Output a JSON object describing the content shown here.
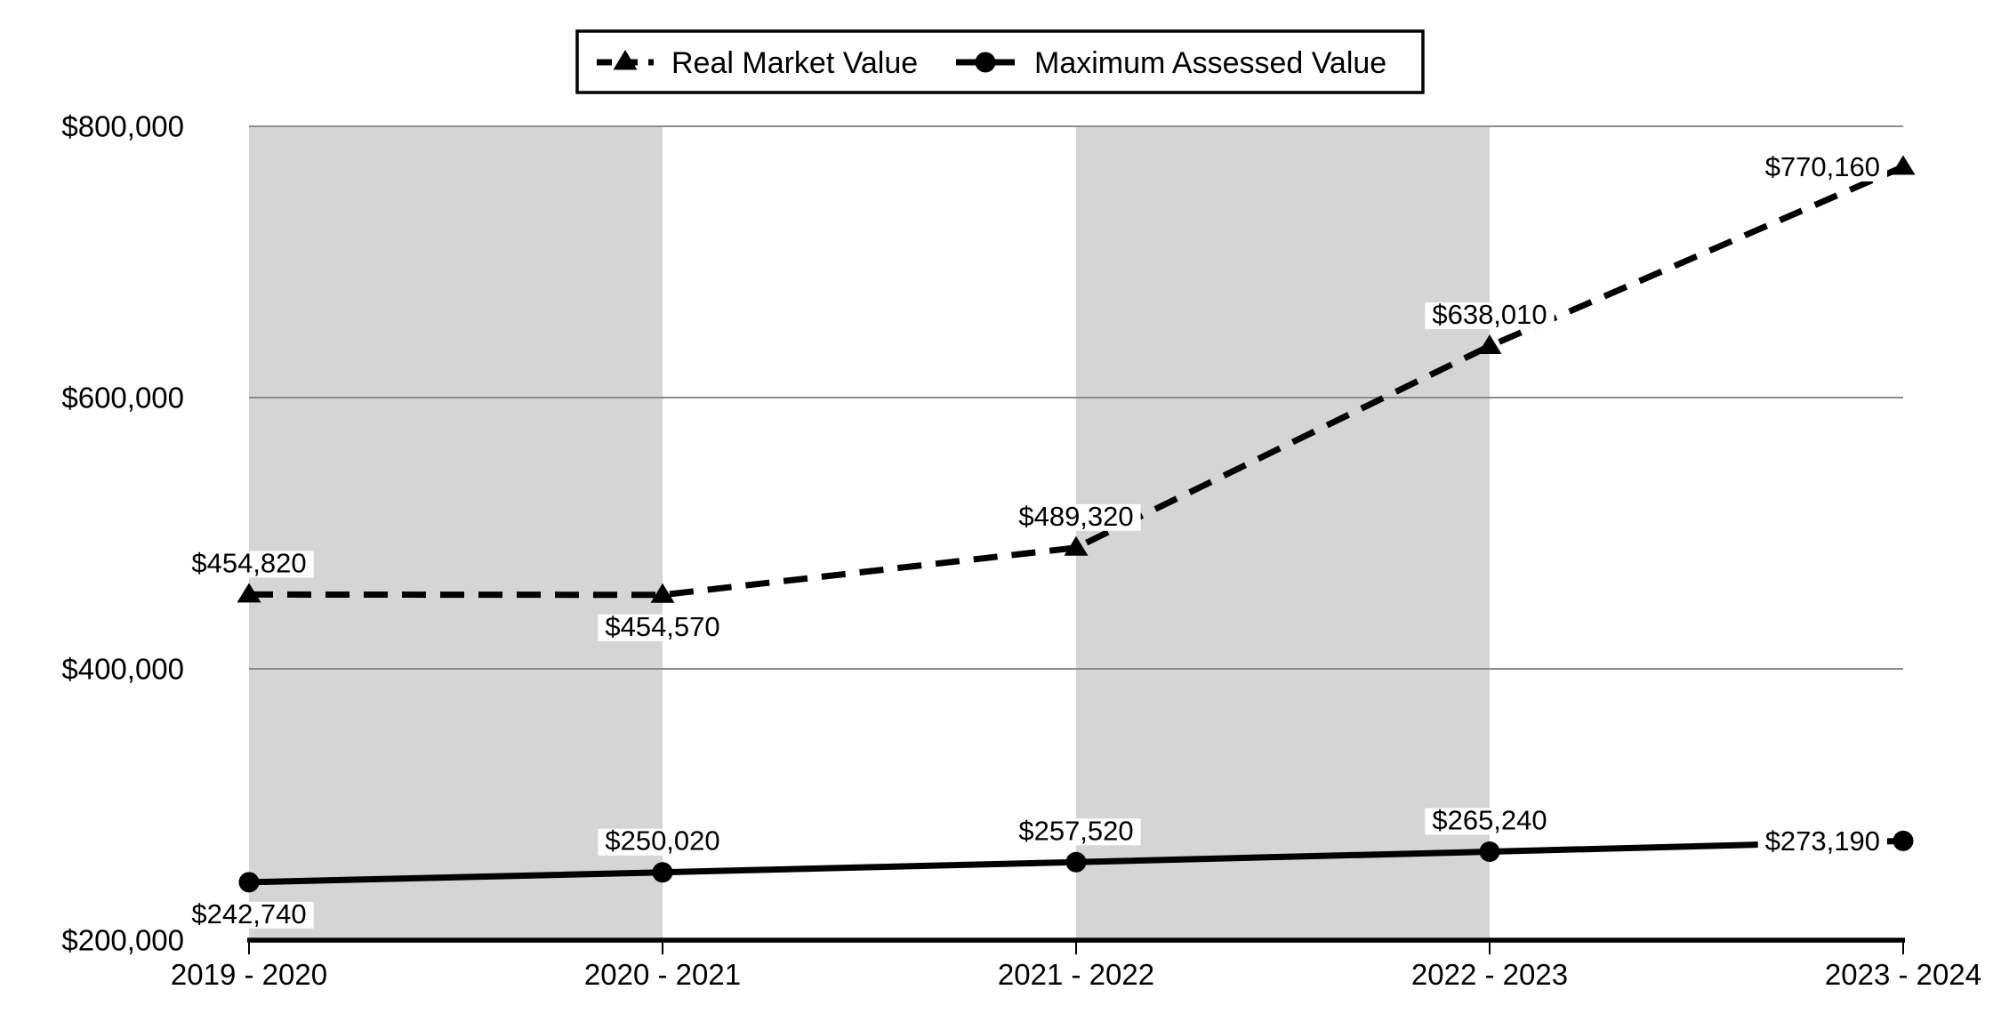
{
  "legend": {
    "items": [
      {
        "label": "Real Market Value",
        "marker": "dashed-line-with-triangle"
      },
      {
        "label": "Maximum Assessed Value",
        "marker": "solid-line-with-circle"
      }
    ]
  },
  "chart_data": {
    "type": "line",
    "title": "",
    "categories": [
      "2019 - 2020",
      "2020 - 2021",
      "2021 - 2022",
      "2022 - 2023",
      "2023 - 2024"
    ],
    "series": [
      {
        "name": "Real Market Value",
        "line_style": "dashed",
        "marker": "triangle",
        "color": "#000000",
        "values": [
          454820,
          454570,
          489320,
          638010,
          770160
        ],
        "data_labels": [
          "$454,820",
          "$454,570",
          "$489,320",
          "$638,010",
          "$770,160"
        ],
        "data_label_positions": [
          "above",
          "below",
          "above",
          "above",
          "left"
        ]
      },
      {
        "name": "Maximum Assessed Value",
        "line_style": "solid",
        "marker": "circle",
        "color": "#000000",
        "values": [
          242740,
          250020,
          257520,
          265240,
          273190
        ],
        "data_labels": [
          "$242,740",
          "$250,020",
          "$257,520",
          "$265,240",
          "$273,190"
        ],
        "data_label_positions": [
          "below",
          "above",
          "above",
          "above",
          "left"
        ]
      }
    ],
    "y_axis": {
      "min": 200000,
      "max": 800000,
      "tick_interval": 200000,
      "tick_labels": [
        "$200,000",
        "$400,000",
        "$600,000",
        "$800,000"
      ]
    },
    "x_axis": {
      "tick_labels": [
        "2019 - 2020",
        "2020 - 2021",
        "2021 - 2022",
        "2022 - 2023",
        "2023 - 2024"
      ]
    },
    "shaded_bands": [
      {
        "from_category": 0,
        "to_category": 1
      },
      {
        "from_category": 2,
        "to_category": 3
      }
    ],
    "styles": {
      "band_color": "#d5d5d5",
      "gridline_color": "#8c8c8c",
      "axis_color": "#000000",
      "background": "#ffffff",
      "label_background": "#ffffff",
      "text_color": "#000000"
    },
    "legend_position": "top-center",
    "grid": "horizontal-only"
  }
}
